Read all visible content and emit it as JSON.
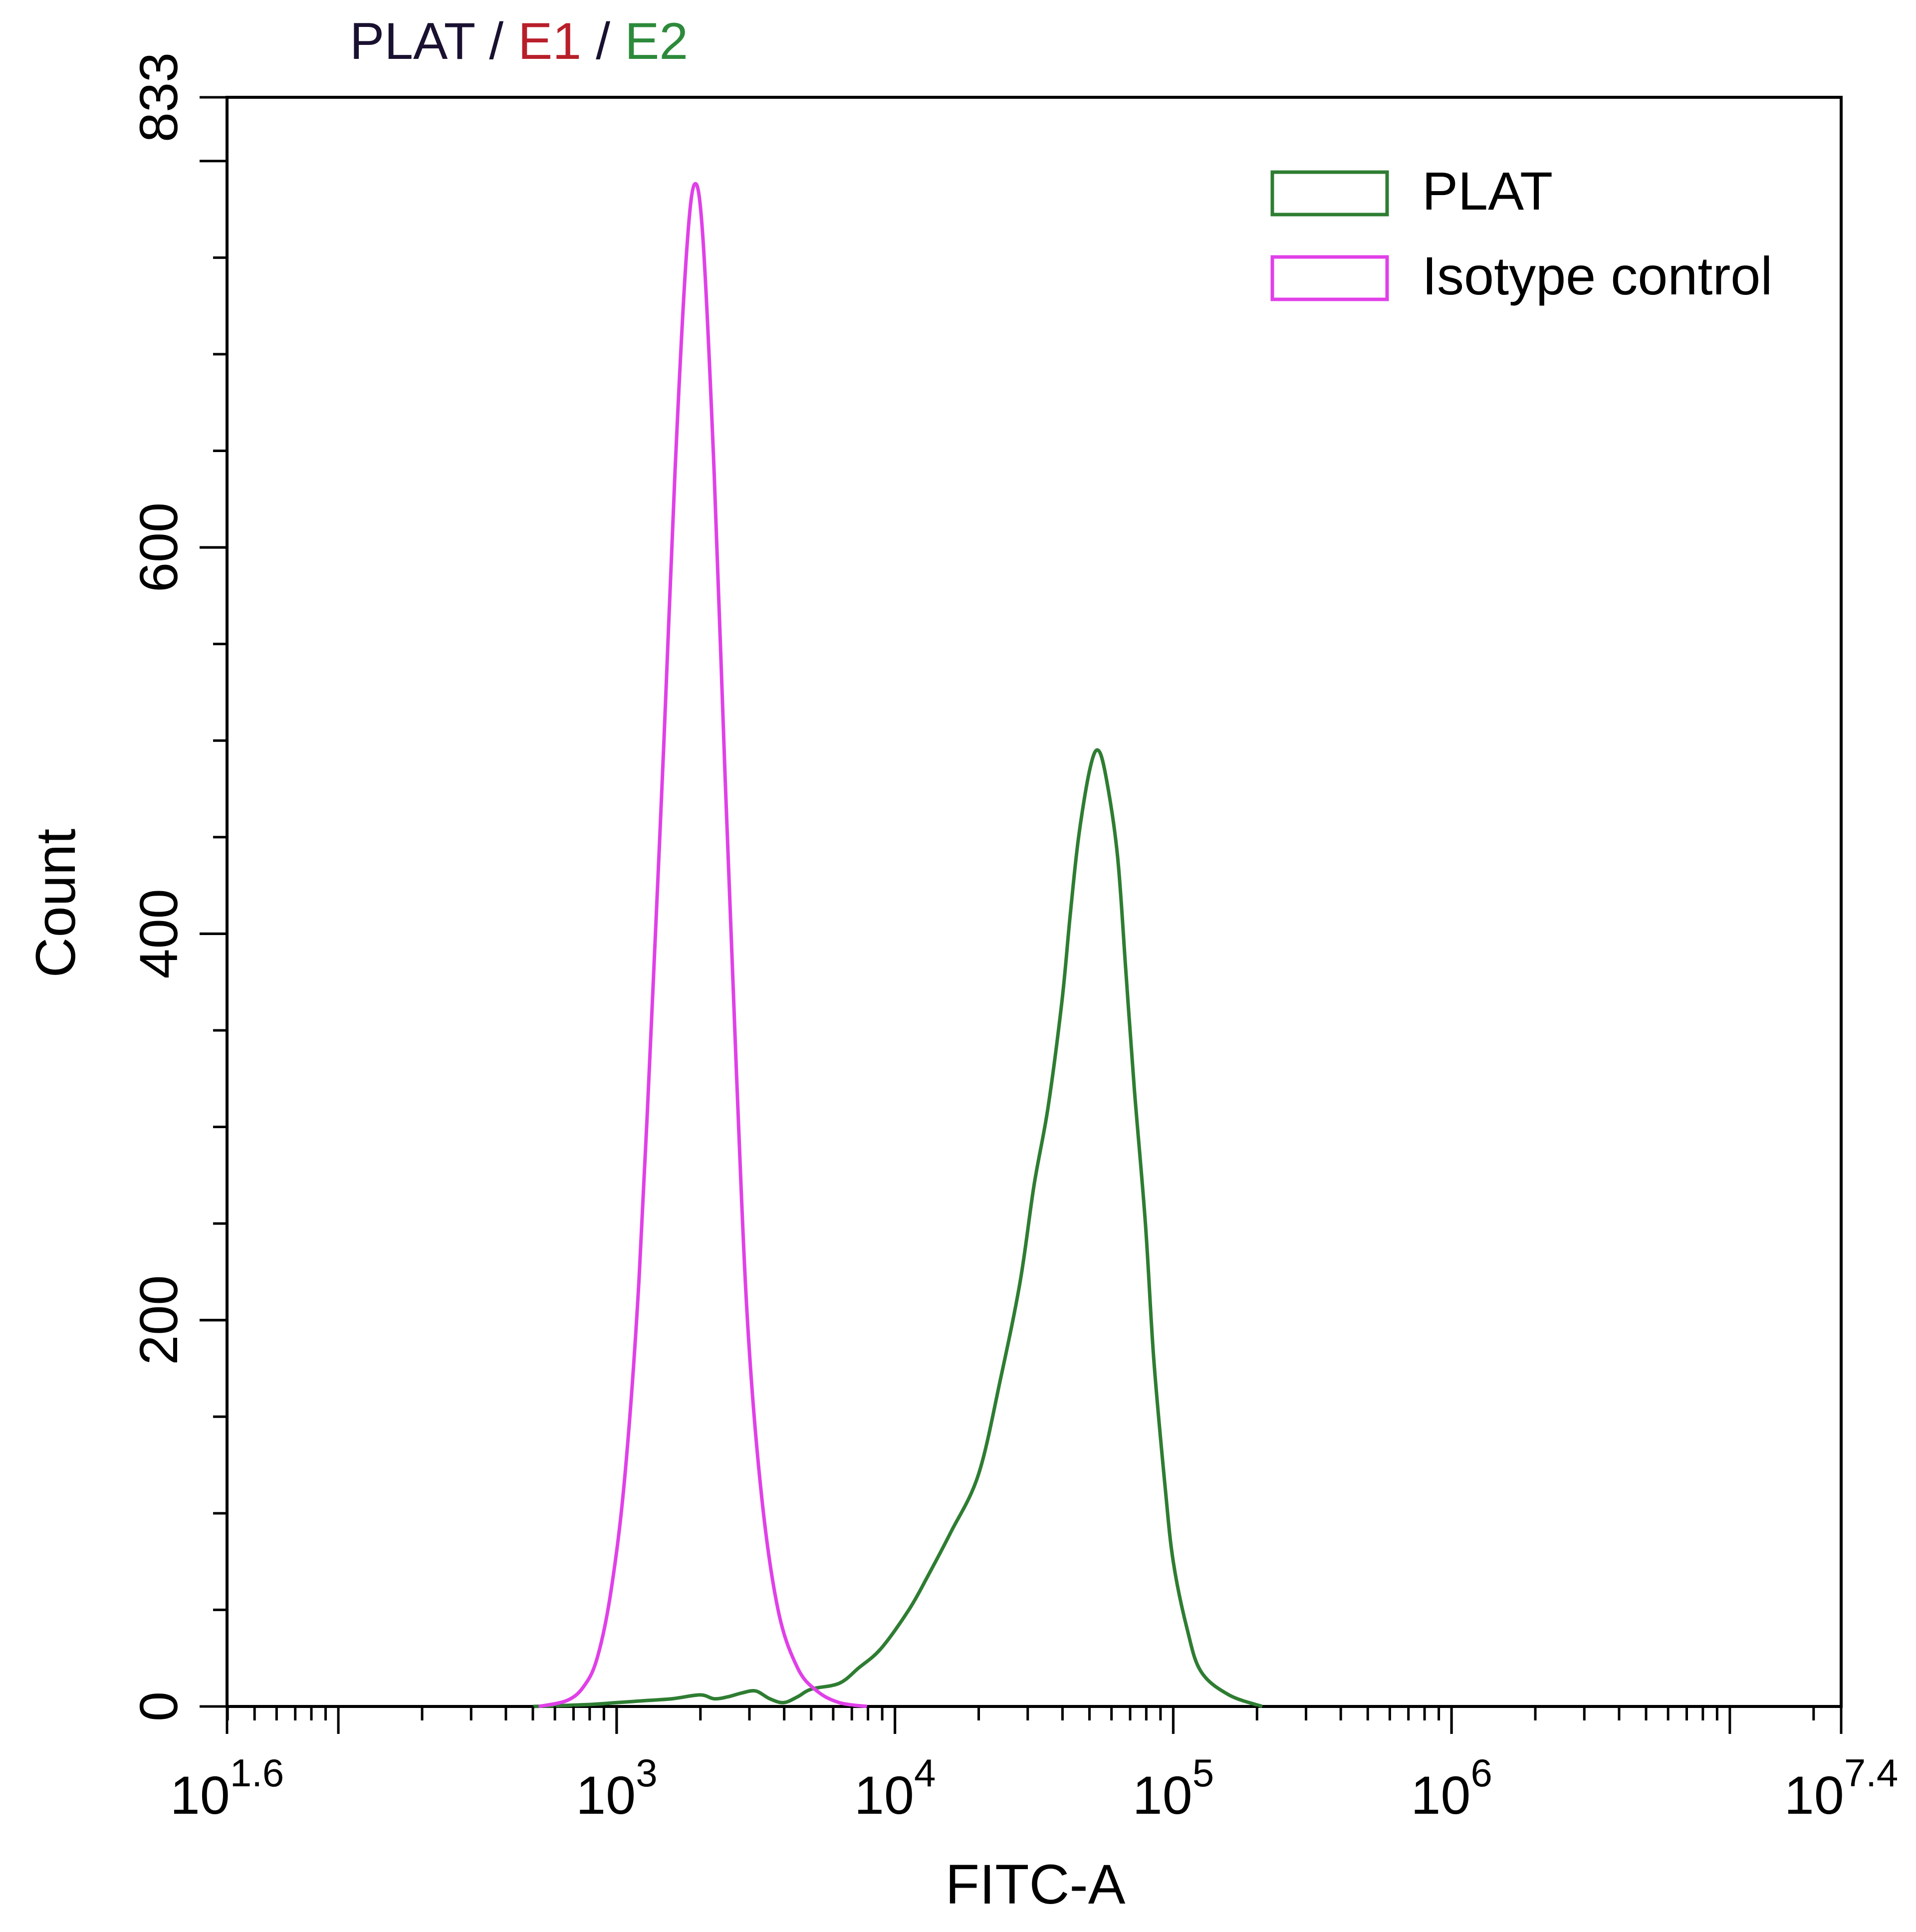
{
  "chart_data": {
    "type": "line",
    "title_parts": [
      {
        "text": "PLAT",
        "color": "#1a1030"
      },
      {
        "text": " / ",
        "color": "#1a1030"
      },
      {
        "text": "E1",
        "color": "#b81f2a"
      },
      {
        "text": " / ",
        "color": "#1a1030"
      },
      {
        "text": "E2",
        "color": "#2c8a3a"
      }
    ],
    "xlabel": "FITC-A",
    "ylabel": "Count",
    "x_scale": "log10",
    "xlim": [
      1.6,
      7.4
    ],
    "ylim": [
      0,
      833
    ],
    "x_ticks": [
      {
        "base": "10",
        "exp": "1.6",
        "value": 1.6
      },
      {
        "base": "10",
        "exp": "3",
        "value": 3
      },
      {
        "base": "10",
        "exp": "4",
        "value": 4
      },
      {
        "base": "10",
        "exp": "5",
        "value": 5
      },
      {
        "base": "10",
        "exp": "6",
        "value": 6
      },
      {
        "base": "10",
        "exp": "7.4",
        "value": 7.4
      }
    ],
    "y_ticks": [
      {
        "label": "0",
        "value": 0
      },
      {
        "label": "200",
        "value": 200
      },
      {
        "label": "400",
        "value": 400
      },
      {
        "label": "600",
        "value": 600
      },
      {
        "label": "833",
        "value": 833
      }
    ],
    "legend": {
      "position": "top-right"
    },
    "series": [
      {
        "name": "PLAT",
        "color": "#2e7d32",
        "points": [
          [
            2.7,
            0
          ],
          [
            2.9,
            1
          ],
          [
            3.0,
            2
          ],
          [
            3.1,
            3
          ],
          [
            3.2,
            4
          ],
          [
            3.3,
            6
          ],
          [
            3.35,
            4
          ],
          [
            3.4,
            5
          ],
          [
            3.45,
            7
          ],
          [
            3.5,
            8
          ],
          [
            3.55,
            4
          ],
          [
            3.6,
            2
          ],
          [
            3.65,
            5
          ],
          [
            3.7,
            9
          ],
          [
            3.8,
            12
          ],
          [
            3.87,
            20
          ],
          [
            3.95,
            30
          ],
          [
            4.05,
            50
          ],
          [
            4.12,
            68
          ],
          [
            4.2,
            90
          ],
          [
            4.3,
            120
          ],
          [
            4.38,
            170
          ],
          [
            4.45,
            220
          ],
          [
            4.5,
            270
          ],
          [
            4.55,
            310
          ],
          [
            4.6,
            365
          ],
          [
            4.63,
            410
          ],
          [
            4.66,
            450
          ],
          [
            4.7,
            485
          ],
          [
            4.73,
            495
          ],
          [
            4.76,
            480
          ],
          [
            4.8,
            440
          ],
          [
            4.83,
            380
          ],
          [
            4.86,
            320
          ],
          [
            4.9,
            250
          ],
          [
            4.93,
            180
          ],
          [
            4.97,
            115
          ],
          [
            5.0,
            75
          ],
          [
            5.05,
            40
          ],
          [
            5.1,
            18
          ],
          [
            5.2,
            6
          ],
          [
            5.32,
            0
          ]
        ]
      },
      {
        "name": "Isotype control",
        "color": "#e040e8",
        "points": [
          [
            2.72,
            0
          ],
          [
            2.82,
            3
          ],
          [
            2.88,
            10
          ],
          [
            2.93,
            25
          ],
          [
            2.98,
            60
          ],
          [
            3.03,
            120
          ],
          [
            3.08,
            220
          ],
          [
            3.13,
            370
          ],
          [
            3.17,
            500
          ],
          [
            3.21,
            640
          ],
          [
            3.25,
            750
          ],
          [
            3.28,
            788
          ],
          [
            3.31,
            760
          ],
          [
            3.35,
            640
          ],
          [
            3.39,
            480
          ],
          [
            3.43,
            330
          ],
          [
            3.47,
            200
          ],
          [
            3.52,
            110
          ],
          [
            3.58,
            50
          ],
          [
            3.65,
            20
          ],
          [
            3.72,
            8
          ],
          [
            3.8,
            2
          ],
          [
            3.9,
            0
          ]
        ]
      }
    ]
  }
}
